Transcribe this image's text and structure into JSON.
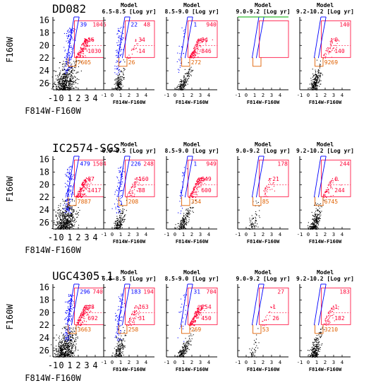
{
  "chart_data": {
    "type": "scatter",
    "axes": {
      "xlabel": "F814W-F160W",
      "ylabel": "F160W",
      "xlim": [
        -1,
        5
      ],
      "ylim": [
        27,
        15.5
      ],
      "obs_xticks": [
        "-1",
        "0",
        "1",
        "2",
        "3",
        "4"
      ],
      "model_xticks": [
        "-1",
        "0",
        "1",
        "2",
        "3",
        "4"
      ],
      "yticks": [
        "16",
        "18",
        "20",
        "22",
        "24",
        "26"
      ]
    },
    "model_header": "Model",
    "model_ages": [
      "6.5-8.5 [Log yr]",
      "8.5-9.0 [Log yr]",
      "9.0-9.2 [Log yr]",
      "9.2-10.2 [Log yr]"
    ],
    "colors": {
      "rsg": "#0000ff",
      "agb": "#ff0033",
      "rgb": "#000000",
      "count_rgb": "#e06000",
      "tip_box": "#e06000",
      "top_line": "#00aa00"
    },
    "rows": [
      {
        "galaxy": "DD082",
        "panels": [
          {
            "blue": "39",
            "r1": "1046",
            "r2": "16",
            "r3": "1030",
            "rgb": "7605"
          },
          {
            "blue": "22",
            "r1": "48",
            "r2": "34",
            "r3": "14",
            "rgb": "26"
          },
          {
            "blue": "1",
            "r1": "940",
            "r2": "94",
            "r3": "846",
            "rgb": "272"
          },
          {
            "blue": "",
            "r1": "",
            "r2": "",
            "r3": "",
            "rgb": ""
          },
          {
            "blue": "",
            "r1": "140",
            "r2": "0",
            "r3": "140",
            "rgb": "9269"
          }
        ]
      },
      {
        "galaxy": "IC2574-SGS",
        "panels": [
          {
            "blue": "479",
            "r1": "1504",
            "r2": "87",
            "r3": "1417",
            "rgb": "7887"
          },
          {
            "blue": "226",
            "r1": "248",
            "r2": "160",
            "r3": "88",
            "rgb": "208"
          },
          {
            "blue": "1",
            "r1": "949",
            "r2": "349",
            "r3": "600",
            "rgb": "354"
          },
          {
            "blue": "",
            "r1": "178",
            "r2": "21",
            "r3": "",
            "rgb": "85"
          },
          {
            "blue": "",
            "r1": "244",
            "r2": "0",
            "r3": "244",
            "rgb": "6745"
          }
        ]
      },
      {
        "galaxy": "UGC4305-1",
        "panels": [
          {
            "blue": "296",
            "r1": "740",
            "r2": "48",
            "r3": "692",
            "rgb": "3663"
          },
          {
            "blue": "183",
            "r1": "194",
            "r2": "163",
            "r3": "31",
            "rgb": "258"
          },
          {
            "blue": "31",
            "r1": "704",
            "r2": "254",
            "r3": "450",
            "rgb": "269"
          },
          {
            "blue": "",
            "r1": "27",
            "r2": "1",
            "r3": "26",
            "rgb": "53"
          },
          {
            "blue": "",
            "r1": "183",
            "r2": "1",
            "r3": "182",
            "rgb": "3210"
          }
        ]
      }
    ]
  }
}
